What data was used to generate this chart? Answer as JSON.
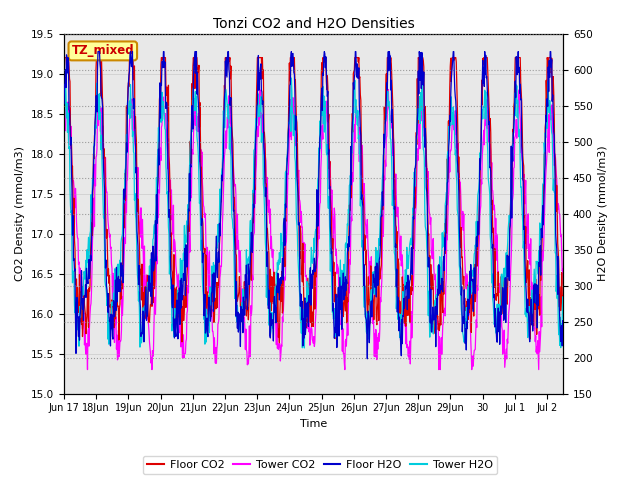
{
  "title": "Tonzi CO2 and H2O Densities",
  "xlabel": "Time",
  "ylabel_left": "CO2 Density (mmol/m3)",
  "ylabel_right": "H2O Density (mmol/m3)",
  "ylim_left": [
    15.0,
    19.5
  ],
  "ylim_right": [
    150,
    650
  ],
  "yticks_left": [
    15.0,
    15.5,
    16.0,
    16.5,
    17.0,
    17.5,
    18.0,
    18.5,
    19.0,
    19.5
  ],
  "yticks_right": [
    150,
    200,
    250,
    300,
    350,
    400,
    450,
    500,
    550,
    600,
    650
  ],
  "colors": {
    "floor_co2": "#DD0000",
    "tower_co2": "#FF00FF",
    "floor_h2o": "#0000CC",
    "tower_h2o": "#00CCDD"
  },
  "legend_labels": [
    "Floor CO2",
    "Tower CO2",
    "Floor H2O",
    "Tower H2O"
  ],
  "annotation_text": "TZ_mixed",
  "annotation_color": "#CC0000",
  "annotation_bg": "#FFFF99",
  "annotation_border": "#CC8800",
  "bg_color": "#E8E8E8",
  "n_points": 1000,
  "tick_labels": [
    "Jun 17",
    "18Jun",
    "19Jun",
    "20Jun",
    "21Jun",
    "22Jun",
    "23Jun",
    "24Jun",
    "25Jun",
    "26Jun",
    "27Jun",
    "28Jun",
    "29Jun",
    "30",
    "Jul 1",
    "Jul 2"
  ]
}
